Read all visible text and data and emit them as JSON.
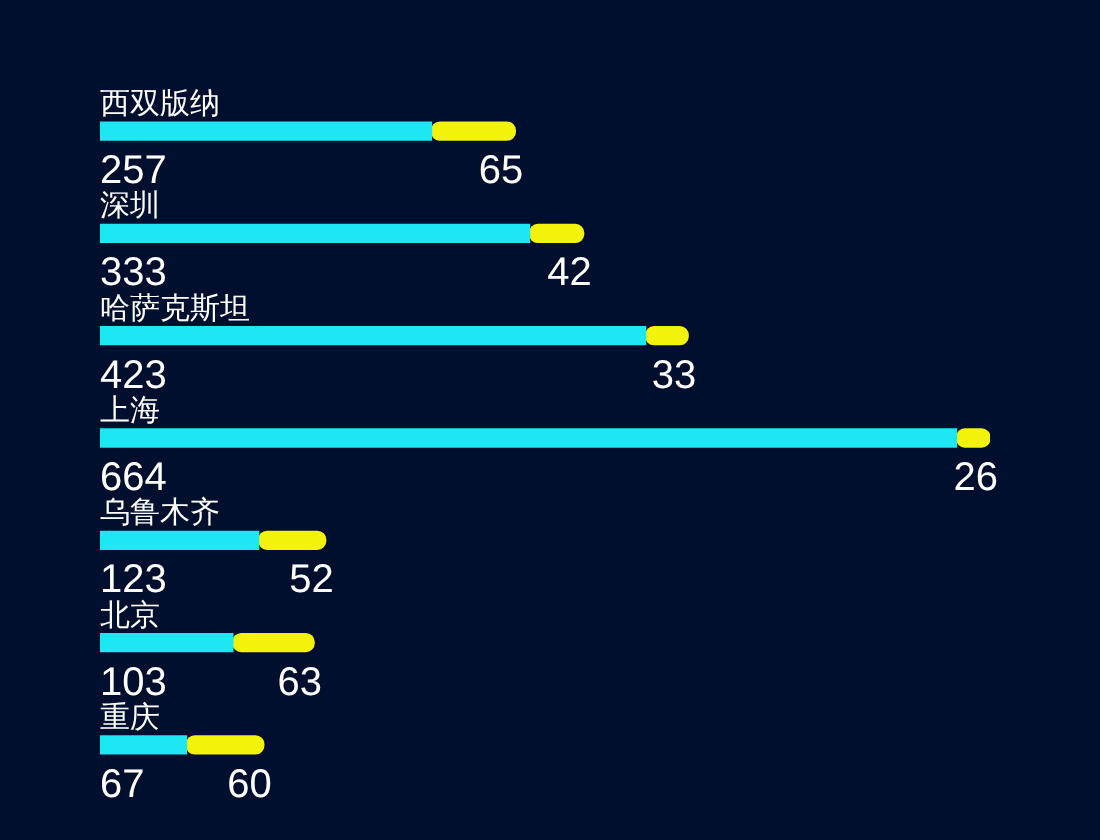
{
  "chart_data": {
    "type": "bar",
    "orientation": "horizontal",
    "stacked": true,
    "data_labels": true,
    "legend": false,
    "tick_labels": false,
    "categories": [
      "西双版纳",
      "深圳",
      "哈萨克斯坦",
      "上海",
      "乌鲁木齐",
      "北京",
      "重庆"
    ],
    "series": [
      {
        "color": "#1ee6f2",
        "values": [
          257,
          333,
          423,
          664,
          123,
          103,
          67
        ]
      },
      {
        "color": "#f2f20a",
        "values": [
          65,
          42,
          33,
          26,
          52,
          63,
          60
        ]
      }
    ]
  }
}
